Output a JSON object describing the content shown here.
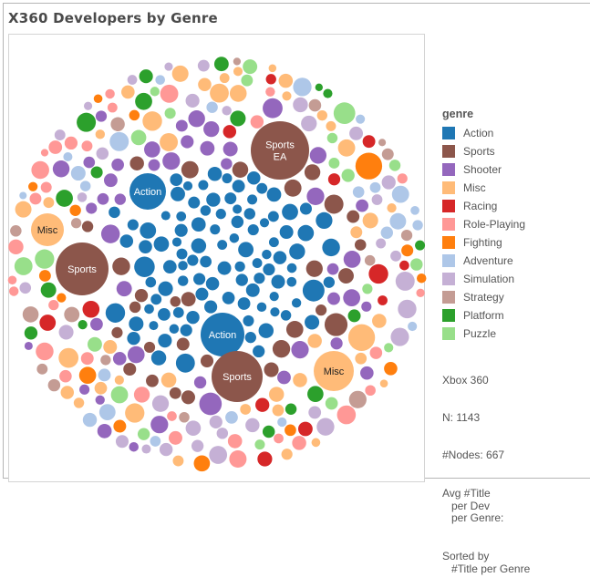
{
  "title": "X360 Developers by Genre",
  "chart_data": {
    "type": "packed-bubble",
    "legend_title": "genre",
    "legend_position": "right",
    "legend": [
      {
        "name": "Action",
        "color": "#1f77b4"
      },
      {
        "name": "Sports",
        "color": "#8c564b"
      },
      {
        "name": "Shooter",
        "color": "#9467bd"
      },
      {
        "name": "Misc",
        "color": "#ffbb78"
      },
      {
        "name": "Racing",
        "color": "#d62728"
      },
      {
        "name": "Role-Playing",
        "color": "#ff9896"
      },
      {
        "name": "Fighting",
        "color": "#ff7f0e"
      },
      {
        "name": "Adventure",
        "color": "#aec7e8"
      },
      {
        "name": "Simulation",
        "color": "#c5b0d5"
      },
      {
        "name": "Strategy",
        "color": "#c49c94"
      },
      {
        "name": "Platform",
        "color": "#2ca02c"
      },
      {
        "name": "Puzzle",
        "color": "#98df8a"
      }
    ],
    "labeled_bubbles": [
      {
        "genre": "Sports",
        "label": [
          "Sports",
          "EA"
        ]
      },
      {
        "genre": "Action",
        "label": [
          "Action"
        ]
      },
      {
        "genre": "Misc",
        "label": [
          "Misc"
        ]
      },
      {
        "genre": "Sports",
        "label": [
          "Sports"
        ]
      },
      {
        "genre": "Action",
        "label": [
          "Action"
        ]
      },
      {
        "genre": "Sports",
        "label": [
          "Sports"
        ]
      },
      {
        "genre": "Misc",
        "label": [
          "Misc"
        ]
      }
    ]
  },
  "stats": {
    "platform": "Xbox 360",
    "n": "N: 1143",
    "nodes": "#Nodes: 667",
    "avg": "Avg #Title\n   per Dev\n   per Genre:",
    "sorted": "Sorted by\n   #Title per Genre"
  }
}
